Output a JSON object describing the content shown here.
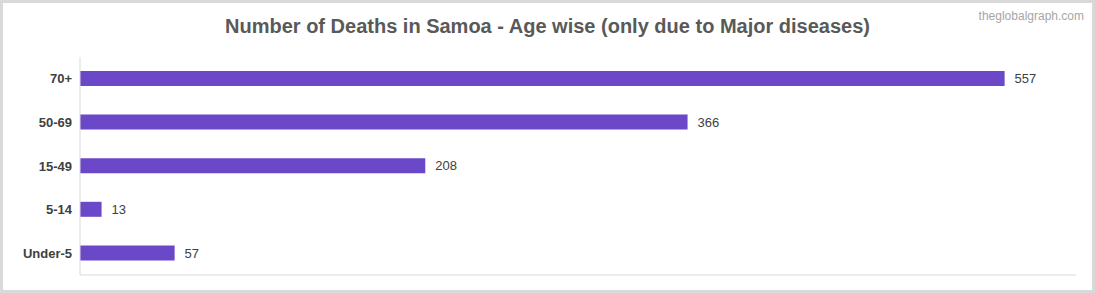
{
  "chart_data": {
    "type": "bar",
    "title": "Number of Deaths in Samoa - Age wise (only due to Major diseases)",
    "annotations": [
      "theglobalgraph.com"
    ],
    "categories": [
      "70+",
      "50-69",
      "15-49",
      "5-14",
      "Under-5"
    ],
    "values": [
      557,
      366,
      208,
      13,
      57
    ],
    "color": "#6a48c8",
    "orientation": "horizontal",
    "xlim": [
      0,
      600
    ],
    "data_labels": true,
    "tick_labels": "y",
    "grid": false
  }
}
